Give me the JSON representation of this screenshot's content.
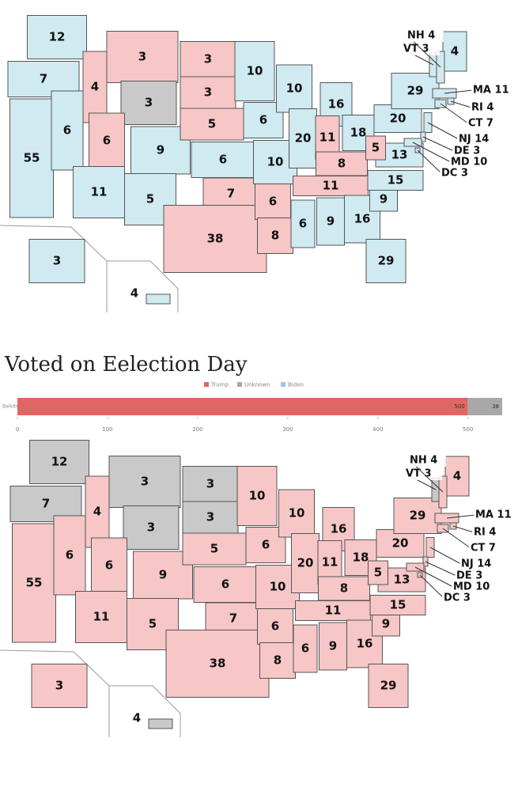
{
  "map_colors": {
    "Trump": "#f7c6c7",
    "Biden": "#cfeaf1",
    "Unknown": "#c9c9c9"
  },
  "maps": [
    {
      "states": [
        {
          "votes": 12,
          "winner": "Biden"
        },
        {
          "votes": 7,
          "winner": "Biden"
        },
        {
          "votes": 55,
          "winner": "Biden"
        },
        {
          "votes": 6,
          "winner": "Biden"
        },
        {
          "votes": 4,
          "winner": "Trump"
        },
        {
          "votes": 3,
          "winner": "Trump"
        },
        {
          "votes": 3,
          "winner": "Unknown"
        },
        {
          "votes": 6,
          "winner": "Trump"
        },
        {
          "votes": 9,
          "winner": "Biden"
        },
        {
          "votes": 11,
          "winner": "Biden"
        },
        {
          "votes": 5,
          "winner": "Biden"
        },
        {
          "votes": 3,
          "winner": "Trump"
        },
        {
          "votes": 3,
          "winner": "Trump"
        },
        {
          "votes": 5,
          "winner": "Trump"
        },
        {
          "votes": 6,
          "winner": "Biden"
        },
        {
          "votes": 7,
          "winner": "Trump"
        },
        {
          "votes": 38,
          "winner": "Trump"
        },
        {
          "votes": 10,
          "winner": "Biden"
        },
        {
          "votes": 6,
          "winner": "Biden"
        },
        {
          "votes": 10,
          "winner": "Biden"
        },
        {
          "votes": 6,
          "winner": "Trump"
        },
        {
          "votes": 8,
          "winner": "Trump"
        },
        {
          "votes": 10,
          "winner": "Biden"
        },
        {
          "votes": 20,
          "winner": "Biden"
        },
        {
          "votes": 16,
          "winner": "Biden"
        },
        {
          "votes": 11,
          "winner": "Trump"
        },
        {
          "votes": 18,
          "winner": "Biden"
        },
        {
          "votes": 8,
          "winner": "Trump"
        },
        {
          "votes": 11,
          "winner": "Trump"
        },
        {
          "votes": 6,
          "winner": "Biden"
        },
        {
          "votes": 9,
          "winner": "Biden"
        },
        {
          "votes": 16,
          "winner": "Biden"
        },
        {
          "votes": 29,
          "winner": "Biden"
        },
        {
          "votes": 9,
          "winner": "Biden"
        },
        {
          "votes": 15,
          "winner": "Biden"
        },
        {
          "votes": 13,
          "winner": "Biden"
        },
        {
          "votes": 5,
          "winner": "Trump"
        },
        {
          "votes": 20,
          "winner": "Biden"
        },
        {
          "votes": 29,
          "winner": "Biden"
        },
        {
          "votes": 4,
          "winner": "Biden"
        },
        {
          "label": "VT 3",
          "winner": "Biden"
        },
        {
          "label": "NH 4",
          "winner": "Biden"
        },
        {
          "label": "MA 11",
          "winner": "Biden"
        },
        {
          "label": "RI 4",
          "winner": "Biden"
        },
        {
          "label": "CT 7",
          "winner": "Biden"
        },
        {
          "label": "NJ 14",
          "winner": "Biden"
        },
        {
          "label": "DE 3",
          "winner": "Biden"
        },
        {
          "label": "MD 10",
          "winner": "Biden"
        },
        {
          "label": "DC 3",
          "winner": "Biden"
        },
        {
          "votes": 3,
          "winner": "Biden"
        },
        {
          "votes": 4,
          "winner": "Biden"
        }
      ]
    },
    {
      "states": [
        {
          "votes": 12,
          "winner": "Unknown"
        },
        {
          "votes": 7,
          "winner": "Unknown"
        },
        {
          "votes": 55,
          "winner": "Trump"
        },
        {
          "votes": 6,
          "winner": "Trump"
        },
        {
          "votes": 4,
          "winner": "Trump"
        },
        {
          "votes": 3,
          "winner": "Unknown"
        },
        {
          "votes": 3,
          "winner": "Unknown"
        },
        {
          "votes": 6,
          "winner": "Trump"
        },
        {
          "votes": 9,
          "winner": "Trump"
        },
        {
          "votes": 11,
          "winner": "Trump"
        },
        {
          "votes": 5,
          "winner": "Trump"
        },
        {
          "votes": 3,
          "winner": "Unknown"
        },
        {
          "votes": 3,
          "winner": "Unknown"
        },
        {
          "votes": 5,
          "winner": "Trump"
        },
        {
          "votes": 6,
          "winner": "Trump"
        },
        {
          "votes": 7,
          "winner": "Trump"
        },
        {
          "votes": 38,
          "winner": "Trump"
        },
        {
          "votes": 10,
          "winner": "Trump"
        },
        {
          "votes": 6,
          "winner": "Trump"
        },
        {
          "votes": 10,
          "winner": "Trump"
        },
        {
          "votes": 6,
          "winner": "Trump"
        },
        {
          "votes": 8,
          "winner": "Trump"
        },
        {
          "votes": 10,
          "winner": "Trump"
        },
        {
          "votes": 20,
          "winner": "Trump"
        },
        {
          "votes": 16,
          "winner": "Trump"
        },
        {
          "votes": 11,
          "winner": "Trump"
        },
        {
          "votes": 18,
          "winner": "Trump"
        },
        {
          "votes": 8,
          "winner": "Trump"
        },
        {
          "votes": 11,
          "winner": "Trump"
        },
        {
          "votes": 6,
          "winner": "Trump"
        },
        {
          "votes": 9,
          "winner": "Trump"
        },
        {
          "votes": 16,
          "winner": "Trump"
        },
        {
          "votes": 29,
          "winner": "Trump"
        },
        {
          "votes": 9,
          "winner": "Trump"
        },
        {
          "votes": 15,
          "winner": "Trump"
        },
        {
          "votes": 13,
          "winner": "Trump"
        },
        {
          "votes": 5,
          "winner": "Trump"
        },
        {
          "votes": 20,
          "winner": "Trump"
        },
        {
          "votes": 29,
          "winner": "Trump"
        },
        {
          "votes": 4,
          "winner": "Trump"
        },
        {
          "label": "VT 3",
          "winner": "Unknown"
        },
        {
          "label": "NH 4",
          "winner": "Trump"
        },
        {
          "label": "MA 11",
          "winner": "Trump"
        },
        {
          "label": "RI 4",
          "winner": "Trump"
        },
        {
          "label": "CT 7",
          "winner": "Trump"
        },
        {
          "label": "NJ 14",
          "winner": "Trump"
        },
        {
          "label": "DE 3",
          "winner": "Trump"
        },
        {
          "label": "MD 10",
          "winner": "Trump"
        },
        {
          "label": "DC 3",
          "winner": "Trump"
        },
        {
          "votes": 3,
          "winner": "Trump"
        },
        {
          "votes": 4,
          "winner": "Unknown"
        }
      ]
    }
  ],
  "chart_data": {
    "type": "bar",
    "orientation": "horizontal",
    "stacked": true,
    "title": "Voted on Eelection Day",
    "categories": [
      "Ballots"
    ],
    "series": [
      {
        "name": "Trump",
        "color": "#e06666",
        "values": [
          500
        ]
      },
      {
        "name": "Unknown",
        "color": "#a8a8a8",
        "values": [
          38
        ]
      },
      {
        "name": "Biden",
        "color": "#9fc5e8",
        "values": [
          0
        ]
      }
    ],
    "xlim": [
      0,
      538
    ],
    "xticks": [
      0,
      100,
      200,
      300,
      400,
      500
    ],
    "legend": "top"
  }
}
